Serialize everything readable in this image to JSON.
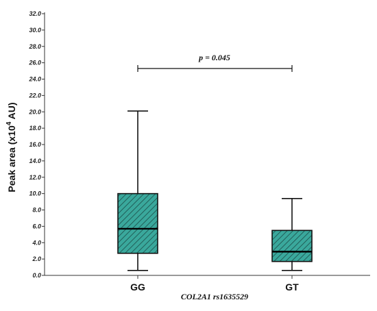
{
  "chart_data": {
    "type": "box",
    "categories": [
      "GG",
      "GT"
    ],
    "boxes": [
      {
        "category": "GG",
        "min": 0.6,
        "q1": 2.7,
        "median": 5.7,
        "q3": 10.0,
        "max": 20.1
      },
      {
        "category": "GT",
        "min": 0.6,
        "q1": 1.7,
        "median": 2.9,
        "q3": 5.5,
        "max": 9.4
      }
    ],
    "ylabel_prefix": "Peak area (x10",
    "ylabel_sup": "4",
    "ylabel_suffix": " AU)",
    "xlabel": "COL2A1 rs1635529",
    "ylim": [
      0,
      32
    ],
    "yticks": [
      "0.0",
      "2.0",
      "4.0",
      "6.0",
      "8.0",
      "10.0",
      "12.0",
      "14.0",
      "16.0",
      "18.0",
      "20.0",
      "22.0",
      "24.0",
      "26.0",
      "28.0",
      "30.0",
      "32.0"
    ],
    "annotation": {
      "text": "p = 0.045",
      "bracket_y": 25.3
    },
    "box_color": "#3aa89c",
    "grid": false,
    "legend": "none"
  }
}
